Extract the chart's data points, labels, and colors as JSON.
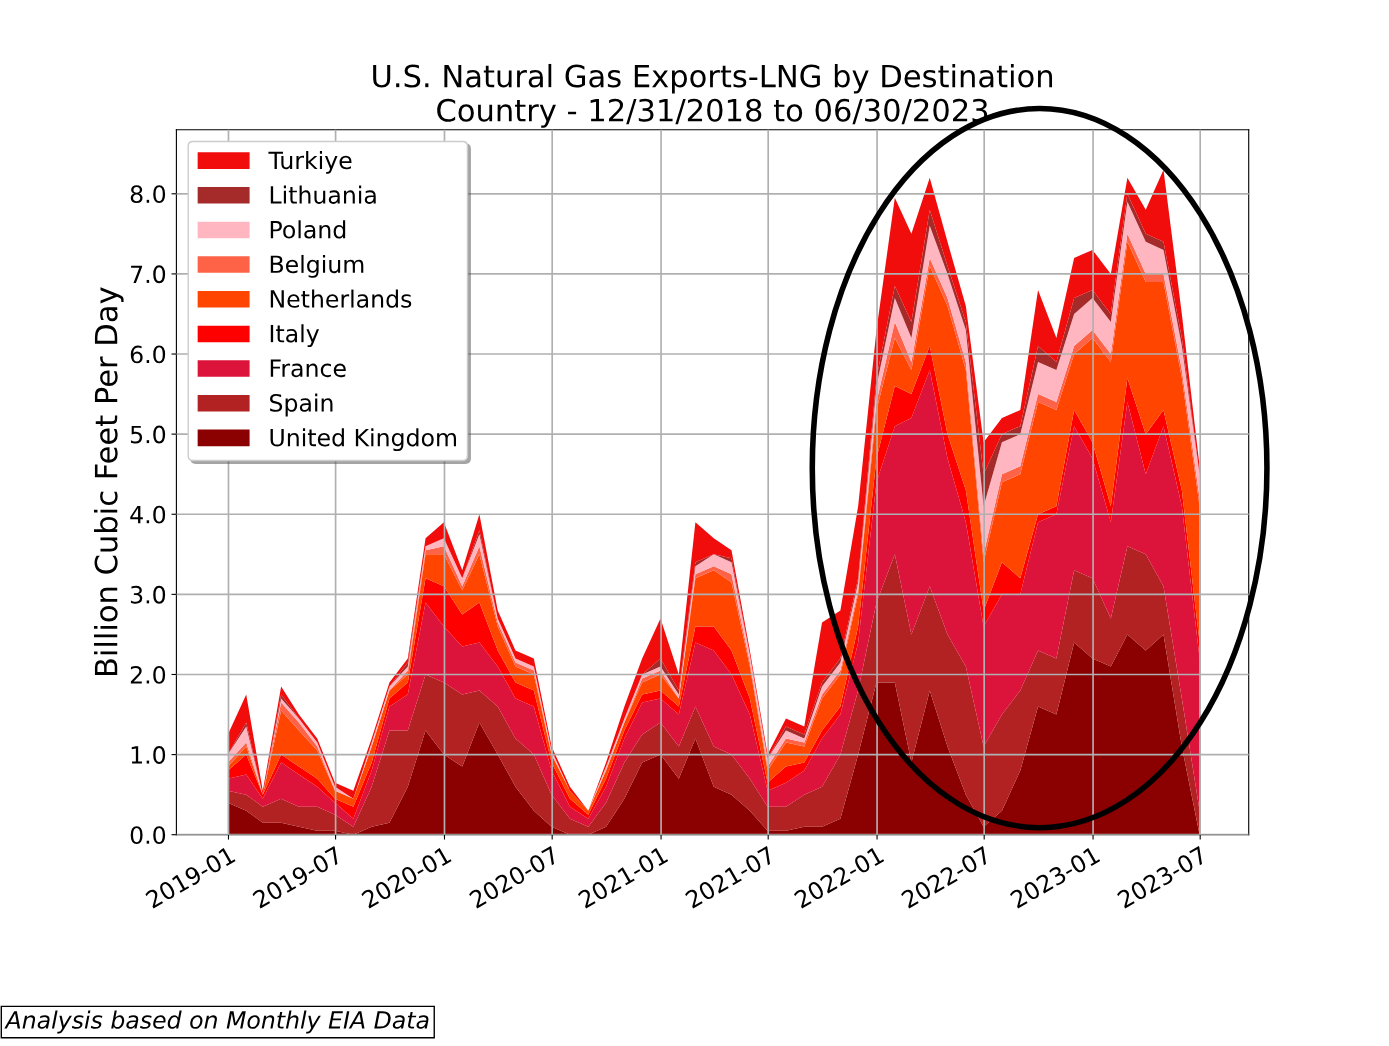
{
  "chart_data": {
    "type": "area",
    "stacked": true,
    "title": "U.S. Natural Gas Exports-LNG by Destination\nCountry - 12/31/2018 to 06/30/2023",
    "ylabel": "Billion Cubic Feet Per Day",
    "annotations": [
      "Analysis based on Monthly EIA Data"
    ],
    "x": [
      "2018-12-31",
      "2019-01-31",
      "2019-02-28",
      "2019-03-31",
      "2019-04-30",
      "2019-05-31",
      "2019-06-30",
      "2019-07-31",
      "2019-08-31",
      "2019-09-30",
      "2019-10-31",
      "2019-11-30",
      "2019-12-31",
      "2020-01-31",
      "2020-02-29",
      "2020-03-31",
      "2020-04-30",
      "2020-05-31",
      "2020-06-30",
      "2020-07-31",
      "2020-08-31",
      "2020-09-30",
      "2020-10-31",
      "2020-11-30",
      "2020-12-31",
      "2021-01-31",
      "2021-02-28",
      "2021-03-31",
      "2021-04-30",
      "2021-05-31",
      "2021-06-30",
      "2021-07-31",
      "2021-08-31",
      "2021-09-30",
      "2021-10-31",
      "2021-11-30",
      "2021-12-31",
      "2022-01-31",
      "2022-02-28",
      "2022-03-31",
      "2022-04-30",
      "2022-05-31",
      "2022-06-30",
      "2022-07-31",
      "2022-08-31",
      "2022-09-30",
      "2022-10-31",
      "2022-11-30",
      "2022-12-31",
      "2023-01-31",
      "2023-02-28",
      "2023-03-31",
      "2023-04-30",
      "2023-05-31",
      "2023-06-30"
    ],
    "series": [
      {
        "name": "United Kingdom",
        "color": "#8b0000",
        "values": [
          0.4,
          0.3,
          0.15,
          0.15,
          0.1,
          0.05,
          0.05,
          0.0,
          0.1,
          0.15,
          0.6,
          1.3,
          1.0,
          0.85,
          1.4,
          1.0,
          0.6,
          0.3,
          0.1,
          0.0,
          0.0,
          0.1,
          0.45,
          0.9,
          1.0,
          0.7,
          1.2,
          0.6,
          0.5,
          0.3,
          0.05,
          0.05,
          0.1,
          0.1,
          0.2,
          1.0,
          1.9,
          1.9,
          0.9,
          1.8,
          1.1,
          0.5,
          0.1,
          0.3,
          0.8,
          1.6,
          1.5,
          2.4,
          2.2,
          2.1,
          2.5,
          2.3,
          2.5,
          1.1,
          0.0
        ]
      },
      {
        "name": "Spain",
        "color": "#b22222",
        "values": [
          0.15,
          0.2,
          0.2,
          0.3,
          0.25,
          0.3,
          0.2,
          0.1,
          0.5,
          1.15,
          0.7,
          0.7,
          0.9,
          0.9,
          0.4,
          0.6,
          0.6,
          0.7,
          0.4,
          0.2,
          0.1,
          0.3,
          0.45,
          0.35,
          0.4,
          0.4,
          0.4,
          0.5,
          0.5,
          0.4,
          0.3,
          0.3,
          0.4,
          0.5,
          0.8,
          0.8,
          1.0,
          1.6,
          1.6,
          1.3,
          1.4,
          1.6,
          1.0,
          1.2,
          1.0,
          0.7,
          0.7,
          0.9,
          1.0,
          0.6,
          1.1,
          1.2,
          0.6,
          0.6,
          0.3
        ]
      },
      {
        "name": "France",
        "color": "#dc143c",
        "values": [
          0.15,
          0.25,
          0.1,
          0.45,
          0.4,
          0.25,
          0.15,
          0.1,
          0.2,
          0.3,
          0.45,
          0.9,
          0.7,
          0.6,
          0.6,
          0.5,
          0.5,
          0.6,
          0.3,
          0.15,
          0.1,
          0.2,
          0.3,
          0.4,
          0.3,
          0.4,
          0.8,
          1.2,
          1.0,
          0.8,
          0.2,
          0.3,
          0.3,
          0.6,
          0.5,
          0.6,
          1.5,
          1.6,
          2.7,
          2.7,
          2.2,
          1.8,
          1.5,
          1.5,
          1.2,
          1.6,
          1.8,
          1.8,
          1.5,
          1.2,
          1.8,
          1.0,
          2.0,
          2.4,
          1.9
        ]
      },
      {
        "name": "Italy",
        "color": "#ff0000",
        "values": [
          0.1,
          0.25,
          0.05,
          0.1,
          0.1,
          0.1,
          0.05,
          0.15,
          0.1,
          0.1,
          0.15,
          0.3,
          0.5,
          0.4,
          0.5,
          0.2,
          0.2,
          0.2,
          0.1,
          0.1,
          0.05,
          0.1,
          0.1,
          0.1,
          0.1,
          0.1,
          0.2,
          0.3,
          0.3,
          0.2,
          0.1,
          0.2,
          0.1,
          0.1,
          0.1,
          0.2,
          0.3,
          0.5,
          0.3,
          0.3,
          0.3,
          0.4,
          0.2,
          0.4,
          0.2,
          0.1,
          0.1,
          0.2,
          0.2,
          0.2,
          0.3,
          0.5,
          0.2,
          0.2,
          0.2
        ]
      },
      {
        "name": "Netherlands",
        "color": "#ff4500",
        "values": [
          0.05,
          0.1,
          0.0,
          0.55,
          0.45,
          0.35,
          0.1,
          0.1,
          0.2,
          0.1,
          0.1,
          0.3,
          0.4,
          0.3,
          0.6,
          0.3,
          0.2,
          0.2,
          0.1,
          0.1,
          0.05,
          0.1,
          0.1,
          0.15,
          0.2,
          0.1,
          0.6,
          0.7,
          0.85,
          0.4,
          0.15,
          0.3,
          0.2,
          0.4,
          0.4,
          0.4,
          0.6,
          0.6,
          0.3,
          1.0,
          1.6,
          1.5,
          0.6,
          1.0,
          1.3,
          1.4,
          1.2,
          0.7,
          1.3,
          1.8,
          1.7,
          1.9,
          1.6,
          1.4,
          1.7
        ]
      },
      {
        "name": "Belgium",
        "color": "#ff6347",
        "values": [
          0.05,
          0.05,
          0.0,
          0.1,
          0.1,
          0.05,
          0.0,
          0.0,
          0.0,
          0.0,
          0.05,
          0.05,
          0.1,
          0.05,
          0.1,
          0.05,
          0.05,
          0.05,
          0.0,
          0.0,
          0.0,
          0.0,
          0.0,
          0.05,
          0.05,
          0.0,
          0.05,
          0.05,
          0.1,
          0.05,
          0.05,
          0.05,
          0.05,
          0.05,
          0.05,
          0.05,
          0.1,
          0.2,
          0.1,
          0.1,
          0.1,
          0.1,
          0.1,
          0.1,
          0.1,
          0.1,
          0.1,
          0.1,
          0.1,
          0.1,
          0.1,
          0.1,
          0.1,
          0.1,
          0.1
        ]
      },
      {
        "name": "Poland",
        "color": "#ffb6c1",
        "values": [
          0.1,
          0.2,
          0.0,
          0.05,
          0.05,
          0.05,
          0.05,
          0.0,
          0.05,
          0.05,
          0.05,
          0.05,
          0.1,
          0.1,
          0.15,
          0.05,
          0.05,
          0.05,
          0.05,
          0.0,
          0.0,
          0.05,
          0.05,
          0.05,
          0.05,
          0.05,
          0.1,
          0.15,
          0.15,
          0.1,
          0.1,
          0.1,
          0.05,
          0.1,
          0.1,
          0.1,
          0.2,
          0.3,
          0.3,
          0.4,
          0.3,
          0.4,
          0.6,
          0.4,
          0.4,
          0.4,
          0.4,
          0.4,
          0.4,
          0.4,
          0.4,
          0.4,
          0.3,
          0.3,
          0.3
        ]
      },
      {
        "name": "Lithuania",
        "color": "#a52a2a",
        "values": [
          0.0,
          0.05,
          0.0,
          0.05,
          0.0,
          0.0,
          0.0,
          0.0,
          0.0,
          0.0,
          0.05,
          0.0,
          0.0,
          0.0,
          0.05,
          0.0,
          0.0,
          0.0,
          0.0,
          0.0,
          0.0,
          0.0,
          0.0,
          0.0,
          0.1,
          0.05,
          0.05,
          0.0,
          0.05,
          0.0,
          0.0,
          0.05,
          0.05,
          0.05,
          0.05,
          0.05,
          0.1,
          0.15,
          0.2,
          0.2,
          0.1,
          0.1,
          0.4,
          0.1,
          0.1,
          0.2,
          0.1,
          0.2,
          0.1,
          0.1,
          0.1,
          0.1,
          0.1,
          0.1,
          0.0
        ]
      },
      {
        "name": "Turkiye",
        "color": "#f20d0d",
        "values": [
          0.25,
          0.35,
          0.05,
          0.1,
          0.05,
          0.05,
          0.05,
          0.1,
          0.05,
          0.05,
          0.05,
          0.1,
          0.2,
          0.1,
          0.2,
          0.1,
          0.1,
          0.1,
          0.05,
          0.05,
          0.0,
          0.05,
          0.15,
          0.2,
          0.5,
          0.2,
          0.5,
          0.2,
          0.1,
          0.05,
          0.05,
          0.1,
          0.1,
          0.75,
          0.6,
          0.9,
          0.6,
          1.1,
          1.1,
          0.4,
          0.3,
          0.2,
          0.4,
          0.2,
          0.2,
          0.7,
          0.3,
          0.5,
          0.5,
          0.5,
          0.2,
          0.3,
          0.9,
          0.3,
          0.1
        ]
      }
    ],
    "xlim": [
      "2018-10-05",
      "2023-09-21"
    ],
    "xticks": [
      {
        "value": "2019-01-01",
        "label": "2019-01"
      },
      {
        "value": "2019-07-01",
        "label": "2019-07"
      },
      {
        "value": "2020-01-01",
        "label": "2020-01"
      },
      {
        "value": "2020-07-01",
        "label": "2020-07"
      },
      {
        "value": "2021-01-01",
        "label": "2021-01"
      },
      {
        "value": "2021-07-01",
        "label": "2021-07"
      },
      {
        "value": "2022-01-01",
        "label": "2022-01"
      },
      {
        "value": "2022-07-01",
        "label": "2022-07"
      },
      {
        "value": "2023-01-01",
        "label": "2023-01"
      },
      {
        "value": "2023-07-01",
        "label": "2023-07"
      }
    ],
    "ylim": [
      0,
      8.8
    ],
    "yticks": [
      {
        "value": 0,
        "label": "0.0"
      },
      {
        "value": 1,
        "label": "1.0"
      },
      {
        "value": 2,
        "label": "2.0"
      },
      {
        "value": 3,
        "label": "3.0"
      },
      {
        "value": 4,
        "label": "4.0"
      },
      {
        "value": 5,
        "label": "5.0"
      },
      {
        "value": 6,
        "label": "6.0"
      },
      {
        "value": 7,
        "label": "7.0"
      },
      {
        "value": 8,
        "label": "8.0"
      }
    ],
    "grid": true,
    "legend": "top left"
  }
}
